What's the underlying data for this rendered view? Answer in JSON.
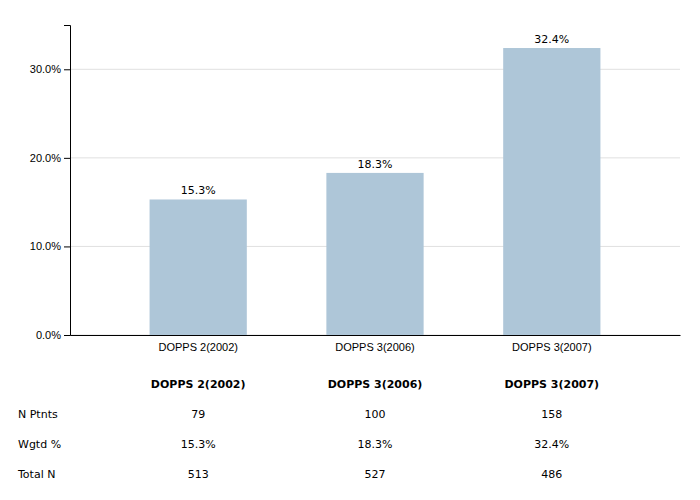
{
  "chart_data": {
    "type": "bar",
    "categories": [
      "DOPPS 2(2002)",
      "DOPPS 3(2006)",
      "DOPPS 3(2007)"
    ],
    "values": [
      15.3,
      18.3,
      32.4
    ],
    "value_labels": [
      "15.3%",
      "18.3%",
      "32.4%"
    ],
    "data_labels": true,
    "color": "#aec6d8",
    "ylim": [
      0,
      35
    ],
    "yticks": [
      {
        "value": 0,
        "label": "0.0%"
      },
      {
        "value": 10,
        "label": "10.0%"
      },
      {
        "value": 20,
        "label": "20.0%"
      },
      {
        "value": 30,
        "label": "30.0%"
      }
    ],
    "grid": true,
    "table_rows": [
      "N Ptnts",
      "Wgtd %",
      "Total N"
    ],
    "table_data": [
      [
        "79",
        "100",
        "158"
      ],
      [
        "15.3%",
        "18.3%",
        "32.4%"
      ],
      [
        "513",
        "527",
        "486"
      ]
    ]
  }
}
